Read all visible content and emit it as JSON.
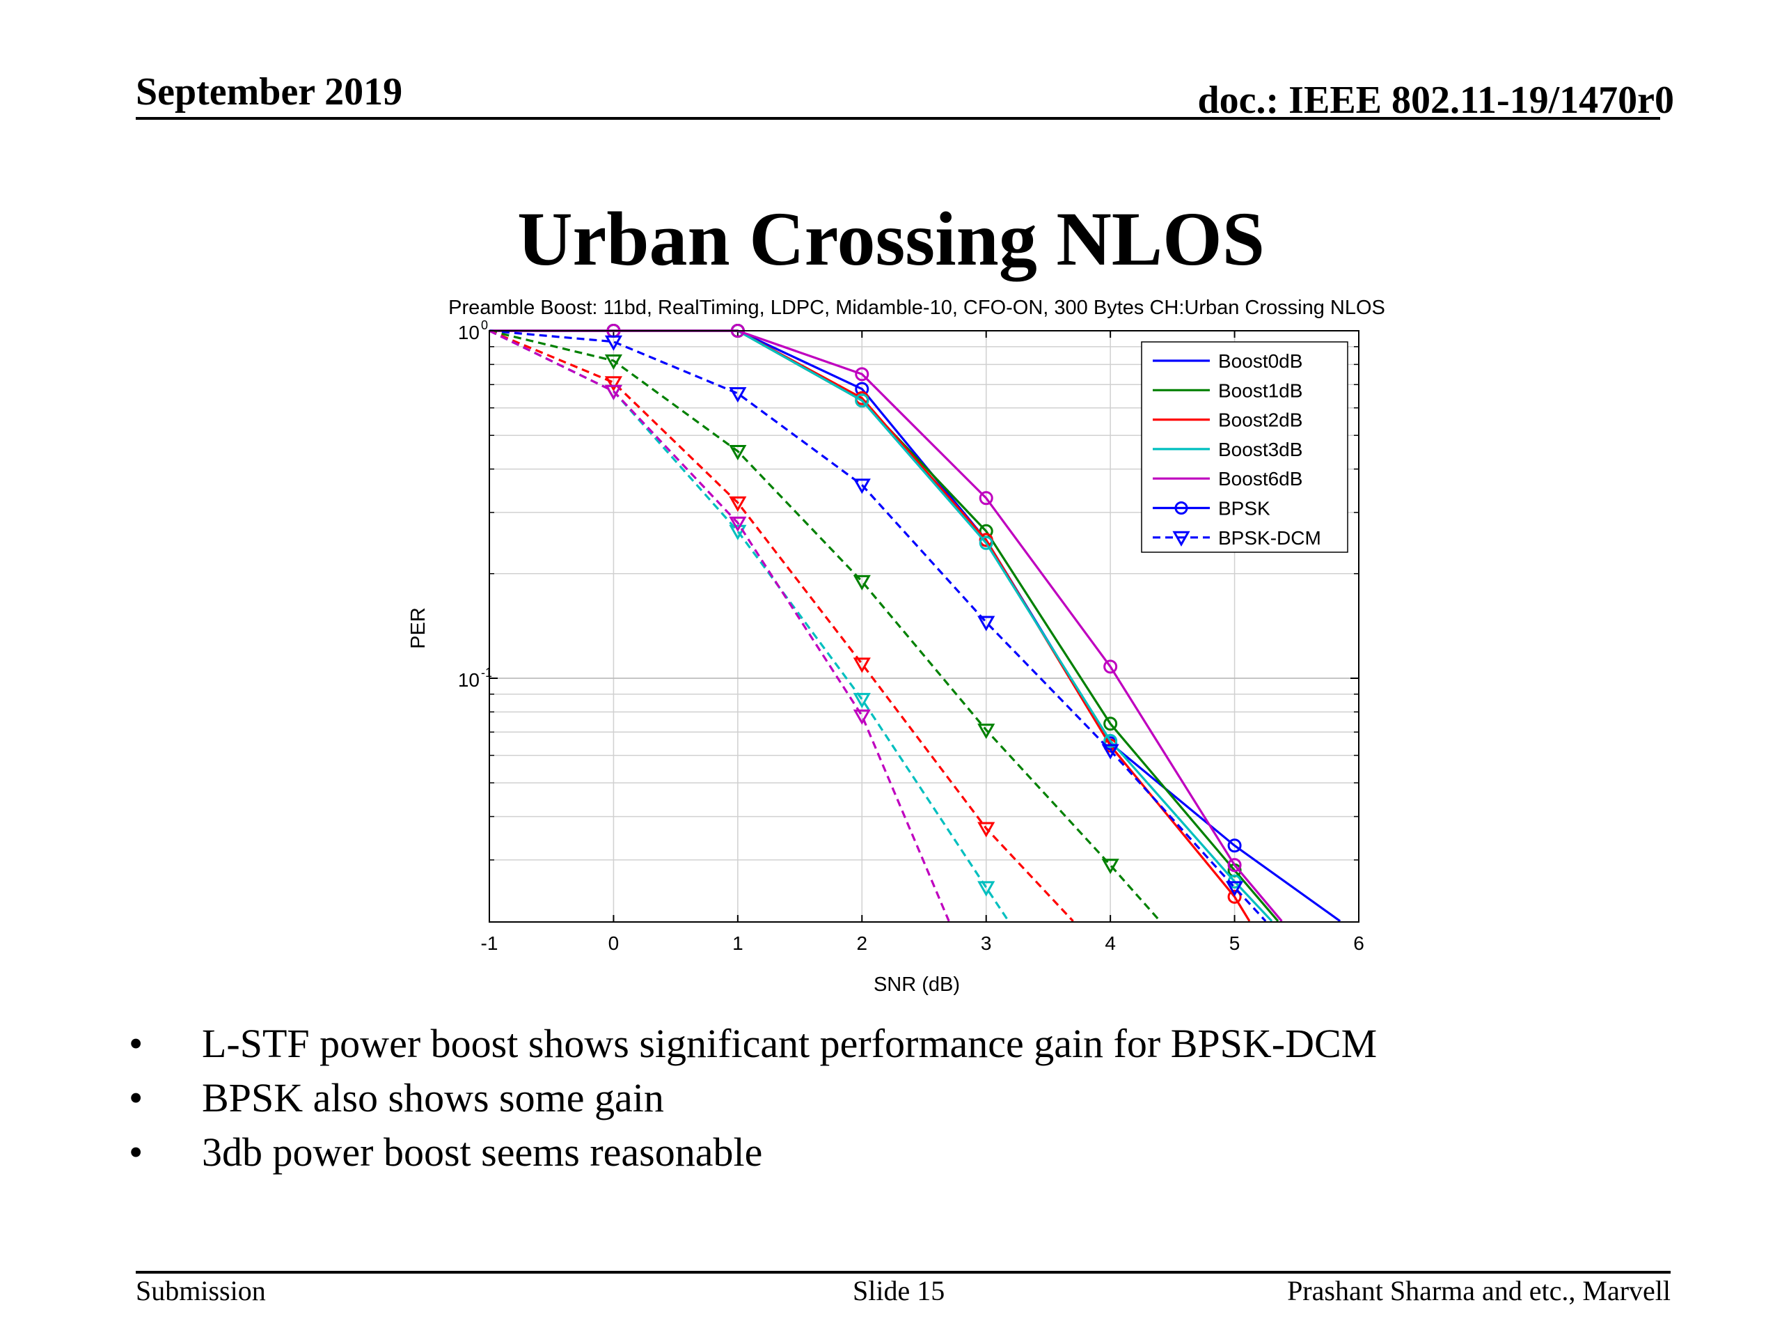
{
  "header": {
    "date": "September 2019",
    "doc": "doc.: IEEE 802.11-19/1470r0"
  },
  "slide_title": "Urban Crossing NLOS",
  "bullets": [
    "L-STF power boost shows significant performance gain for BPSK-DCM",
    "BPSK also shows some gain",
    "3db power boost seems reasonable"
  ],
  "footer": {
    "left": "Submission",
    "center": "Slide 15",
    "right": "Prashant Sharma and etc., Marvell"
  },
  "chart_data": {
    "type": "line",
    "title": "Preamble Boost: 11bd, RealTiming, LDPC, Midamble-10, CFO-ON, 300 Bytes CH:Urban Crossing NLOS",
    "xlabel": "SNR (dB)",
    "ylabel": "PER",
    "yscale": "log",
    "xlim": [
      -1,
      6
    ],
    "ylim": [
      0.02,
      1
    ],
    "xticks": [
      "-1",
      "0",
      "1",
      "2",
      "3",
      "4",
      "5",
      "6"
    ],
    "yticks": [
      {
        "base": "10",
        "exp": "0",
        "value": 1
      },
      {
        "base": "10",
        "exp": "-1",
        "value": 0.1
      }
    ],
    "grid": true,
    "legend_position": "top-right",
    "legend": [
      {
        "label": "Boost0dB",
        "color": "#0000ff",
        "style": "solid",
        "marker": "none"
      },
      {
        "label": "Boost1dB",
        "color": "#008000",
        "style": "solid",
        "marker": "none"
      },
      {
        "label": "Boost2dB",
        "color": "#ff0000",
        "style": "solid",
        "marker": "none"
      },
      {
        "label": "Boost3dB",
        "color": "#00bfbf",
        "style": "solid",
        "marker": "none"
      },
      {
        "label": "Boost6dB",
        "color": "#bf00bf",
        "style": "solid",
        "marker": "none"
      },
      {
        "label": "BPSK",
        "color": "#0000ff",
        "style": "solid",
        "marker": "circle"
      },
      {
        "label": "BPSK-DCM",
        "color": "#0000ff",
        "style": "dashed",
        "marker": "triangle"
      }
    ],
    "series": [
      {
        "name": "Boost0dB BPSK",
        "color": "#0000ff",
        "dashed": false,
        "marker": "circle",
        "x": [
          -1,
          0,
          1,
          2,
          3,
          4,
          5,
          5.85
        ],
        "y": [
          1,
          1,
          1,
          0.68,
          0.25,
          0.065,
          0.033,
          0.02
        ]
      },
      {
        "name": "Boost1dB BPSK",
        "color": "#008000",
        "dashed": false,
        "marker": "circle",
        "x": [
          -1,
          0,
          1,
          2,
          3,
          4,
          5,
          5.35
        ],
        "y": [
          1,
          1,
          1,
          0.63,
          0.265,
          0.074,
          0.028,
          0.02
        ]
      },
      {
        "name": "Boost2dB BPSK",
        "color": "#ff0000",
        "dashed": false,
        "marker": "circle",
        "x": [
          -1,
          0,
          1,
          2,
          3,
          4,
          5,
          5.12
        ],
        "y": [
          1,
          1,
          1,
          0.64,
          0.25,
          0.064,
          0.0235,
          0.02
        ]
      },
      {
        "name": "Boost3dB BPSK",
        "color": "#00bfbf",
        "dashed": false,
        "marker": "circle",
        "x": [
          -1,
          0,
          1,
          2,
          3,
          4,
          5,
          5.3
        ],
        "y": [
          1,
          1,
          1,
          0.63,
          0.245,
          0.066,
          0.026,
          0.02
        ]
      },
      {
        "name": "Boost6dB BPSK",
        "color": "#bf00bf",
        "dashed": false,
        "marker": "circle",
        "x": [
          -1,
          0,
          1,
          2,
          3,
          4,
          5,
          5.38
        ],
        "y": [
          1,
          1,
          1,
          0.75,
          0.33,
          0.108,
          0.029,
          0.02
        ]
      },
      {
        "name": "Boost0dB BPSK-DCM",
        "color": "#0000ff",
        "dashed": true,
        "marker": "triangle",
        "x": [
          -1,
          0,
          1,
          2,
          3,
          4,
          5,
          5.25
        ],
        "y": [
          1,
          0.93,
          0.66,
          0.36,
          0.145,
          0.062,
          0.025,
          0.02
        ]
      },
      {
        "name": "Boost1dB BPSK-DCM",
        "color": "#008000",
        "dashed": true,
        "marker": "triangle",
        "x": [
          -1,
          0,
          1,
          2,
          3,
          4,
          4.4
        ],
        "y": [
          1,
          0.82,
          0.45,
          0.19,
          0.071,
          0.029,
          0.02
        ]
      },
      {
        "name": "Boost2dB BPSK-DCM",
        "color": "#ff0000",
        "dashed": true,
        "marker": "triangle",
        "x": [
          -1,
          0,
          1,
          2,
          3,
          3.7
        ],
        "y": [
          1,
          0.71,
          0.32,
          0.11,
          0.037,
          0.02
        ]
      },
      {
        "name": "Boost3dB BPSK-DCM",
        "color": "#00bfbf",
        "dashed": true,
        "marker": "triangle",
        "x": [
          -1,
          0,
          1,
          2,
          3,
          3.18
        ],
        "y": [
          1,
          0.67,
          0.265,
          0.087,
          0.025,
          0.02
        ]
      },
      {
        "name": "Boost6dB BPSK-DCM",
        "color": "#bf00bf",
        "dashed": true,
        "marker": "triangle",
        "x": [
          -1,
          0,
          1,
          2,
          2.7
        ],
        "y": [
          1,
          0.67,
          0.28,
          0.078,
          0.02
        ]
      }
    ]
  }
}
